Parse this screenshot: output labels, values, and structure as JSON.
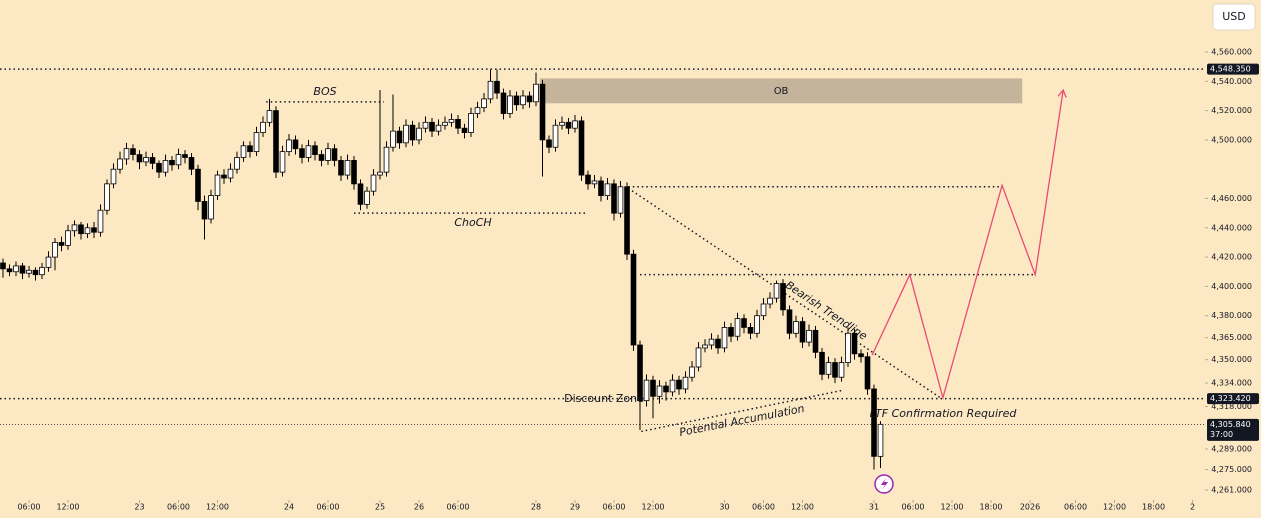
{
  "chart_data": {
    "type": "candlestick",
    "currency": "USD",
    "xlim": [
      -0.46,
      184.92
    ],
    "ylim": [
      4254.2,
      4595.5
    ],
    "xticks": [
      {
        "value": 4,
        "label": "06:00"
      },
      {
        "value": 10,
        "label": "12:00"
      },
      {
        "value": 21,
        "label": "23"
      },
      {
        "value": 27,
        "label": "06:00"
      },
      {
        "value": 33,
        "label": "12:00"
      },
      {
        "value": 44,
        "label": "24"
      },
      {
        "value": 50,
        "label": "06:00"
      },
      {
        "value": 58,
        "label": "25"
      },
      {
        "value": 64,
        "label": "26"
      },
      {
        "value": 70,
        "label": "06:00"
      },
      {
        "value": 82,
        "label": "28"
      },
      {
        "value": 88,
        "label": "29"
      },
      {
        "value": 94,
        "label": "06:00"
      },
      {
        "value": 100,
        "label": "12:00"
      },
      {
        "value": 111,
        "label": "30"
      },
      {
        "value": 117,
        "label": "06:00"
      },
      {
        "value": 123,
        "label": "12:00"
      },
      {
        "value": 134,
        "label": "31"
      },
      {
        "value": 140,
        "label": "06:00"
      },
      {
        "value": 146,
        "label": "12:00"
      },
      {
        "value": 152,
        "label": "18:00"
      },
      {
        "value": 158,
        "label": "2026"
      },
      {
        "value": 165,
        "label": "06:00"
      },
      {
        "value": 171,
        "label": "12:00"
      },
      {
        "value": 177,
        "label": "18:00"
      },
      {
        "value": 183,
        "label": "2"
      }
    ],
    "yticks": [
      {
        "value": 4560,
        "label": "4,560.000"
      },
      {
        "value": 4540,
        "label": "4,540.000"
      },
      {
        "value": 4520,
        "label": "4,520.000"
      },
      {
        "value": 4500,
        "label": "4,500.000"
      },
      {
        "value": 4460,
        "label": "4,460.000"
      },
      {
        "value": 4440,
        "label": "4,440.000"
      },
      {
        "value": 4420,
        "label": "4,420.000"
      },
      {
        "value": 4400,
        "label": "4,400.000"
      },
      {
        "value": 4380,
        "label": "4,380.000"
      },
      {
        "value": 4365,
        "label": "4,365.000"
      },
      {
        "value": 4350,
        "label": "4,350.000"
      },
      {
        "value": 4334,
        "label": "4,334.000"
      },
      {
        "value": 4318,
        "label": "4,318.000"
      },
      {
        "value": 4289,
        "label": "4,289.000"
      },
      {
        "value": 4275,
        "label": "4,275.000"
      },
      {
        "value": 4261,
        "label": "4,261.000"
      }
    ],
    "price_tags": [
      {
        "value": 4548.35,
        "label": "4,548.350"
      },
      {
        "value": 4323.42,
        "label": "4,323.420"
      },
      {
        "value": 4305.84,
        "label": "4,305.840",
        "countdown": "37:00"
      }
    ],
    "ohlc": [
      [
        4416,
        4419,
        4406,
        4412
      ],
      [
        4412,
        4415,
        4407,
        4410
      ],
      [
        4410,
        4417,
        4407,
        4414
      ],
      [
        4414,
        4416,
        4405,
        4409
      ],
      [
        4409,
        4414,
        4406,
        4411
      ],
      [
        4411,
        4413,
        4404,
        4408
      ],
      [
        4408,
        4416,
        4405,
        4413
      ],
      [
        4413,
        4424,
        4410,
        4420
      ],
      [
        4420,
        4433,
        4411,
        4430
      ],
      [
        4430,
        4434,
        4424,
        4428
      ],
      [
        4428,
        4442,
        4425,
        4438
      ],
      [
        4438,
        4445,
        4434,
        4442
      ],
      [
        4442,
        4444,
        4432,
        4436
      ],
      [
        4436,
        4443,
        4433,
        4440
      ],
      [
        4440,
        4444,
        4433,
        4437
      ],
      [
        4437,
        4456,
        4434,
        4452
      ],
      [
        4452,
        4473,
        4449,
        4470
      ],
      [
        4470,
        4484,
        4467,
        4480
      ],
      [
        4480,
        4492,
        4477,
        4487
      ],
      [
        4487,
        4498,
        4483,
        4494
      ],
      [
        4494,
        4497,
        4486,
        4490
      ],
      [
        4490,
        4493,
        4480,
        4485
      ],
      [
        4485,
        4492,
        4482,
        4488
      ],
      [
        4488,
        4491,
        4480,
        4484
      ],
      [
        4484,
        4486,
        4474,
        4478
      ],
      [
        4478,
        4490,
        4475,
        4486
      ],
      [
        4486,
        4489,
        4479,
        4483
      ],
      [
        4483,
        4494,
        4480,
        4490
      ],
      [
        4490,
        4493,
        4484,
        4488
      ],
      [
        4488,
        4491,
        4476,
        4480
      ],
      [
        4480,
        4483,
        4452,
        4458
      ],
      [
        4458,
        4462,
        4432,
        4446
      ],
      [
        4446,
        4466,
        4443,
        4462
      ],
      [
        4462,
        4479,
        4459,
        4476
      ],
      [
        4476,
        4480,
        4470,
        4474
      ],
      [
        4474,
        4484,
        4471,
        4480
      ],
      [
        4480,
        4492,
        4477,
        4488
      ],
      [
        4488,
        4499,
        4485,
        4496
      ],
      [
        4496,
        4499,
        4488,
        4492
      ],
      [
        4492,
        4509,
        4489,
        4505
      ],
      [
        4505,
        4516,
        4502,
        4512
      ],
      [
        4512,
        4528,
        4509,
        4520
      ],
      [
        4520,
        4523,
        4474,
        4478
      ],
      [
        4478,
        4496,
        4475,
        4492
      ],
      [
        4492,
        4504,
        4489,
        4500
      ],
      [
        4500,
        4503,
        4490,
        4494
      ],
      [
        4494,
        4497,
        4484,
        4488
      ],
      [
        4488,
        4500,
        4485,
        4496
      ],
      [
        4496,
        4499,
        4486,
        4490
      ],
      [
        4490,
        4493,
        4482,
        4486
      ],
      [
        4486,
        4498,
        4483,
        4494
      ],
      [
        4494,
        4497,
        4482,
        4486
      ],
      [
        4486,
        4489,
        4472,
        4476
      ],
      [
        4476,
        4490,
        4473,
        4486
      ],
      [
        4486,
        4489,
        4466,
        4470
      ],
      [
        4470,
        4473,
        4452,
        4456
      ],
      [
        4456,
        4468,
        4453,
        4465
      ],
      [
        4465,
        4480,
        4462,
        4476
      ],
      [
        4476,
        4534,
        4473,
        4478
      ],
      [
        4478,
        4499,
        4475,
        4495
      ],
      [
        4495,
        4531,
        4492,
        4506
      ],
      [
        4506,
        4509,
        4494,
        4498
      ],
      [
        4498,
        4514,
        4495,
        4510
      ],
      [
        4510,
        4513,
        4496,
        4500
      ],
      [
        4500,
        4512,
        4497,
        4508
      ],
      [
        4508,
        4516,
        4505,
        4512
      ],
      [
        4512,
        4515,
        4502,
        4506
      ],
      [
        4506,
        4514,
        4503,
        4510
      ],
      [
        4510,
        4516,
        4507,
        4512
      ],
      [
        4512,
        4518,
        4509,
        4514
      ],
      [
        4514,
        4517,
        4504,
        4508
      ],
      [
        4508,
        4511,
        4501,
        4505
      ],
      [
        4505,
        4522,
        4502,
        4518
      ],
      [
        4518,
        4526,
        4515,
        4522
      ],
      [
        4522,
        4532,
        4519,
        4528
      ],
      [
        4528,
        4548,
        4525,
        4540
      ],
      [
        4540,
        4548,
        4528,
        4532
      ],
      [
        4532,
        4535,
        4514,
        4518
      ],
      [
        4518,
        4534,
        4515,
        4530
      ],
      [
        4530,
        4533,
        4520,
        4524
      ],
      [
        4524,
        4534,
        4521,
        4530
      ],
      [
        4530,
        4533,
        4522,
        4526
      ],
      [
        4526,
        4546,
        4523,
        4538
      ],
      [
        4538,
        4541,
        4475,
        4500
      ],
      [
        4500,
        4503,
        4491,
        4495
      ],
      [
        4495,
        4514,
        4492,
        4510
      ],
      [
        4510,
        4516,
        4507,
        4512
      ],
      [
        4512,
        4515,
        4504,
        4508
      ],
      [
        4508,
        4517,
        4505,
        4513
      ],
      [
        4513,
        4516,
        4472,
        4476
      ],
      [
        4476,
        4479,
        4466,
        4470
      ],
      [
        4470,
        4476,
        4467,
        4472
      ],
      [
        4472,
        4475,
        4458,
        4462
      ],
      [
        4462,
        4474,
        4459,
        4470
      ],
      [
        4470,
        4473,
        4445,
        4450
      ],
      [
        4450,
        4472,
        4447,
        4468
      ],
      [
        4468,
        4471,
        4418,
        4422
      ],
      [
        4422,
        4425,
        4356,
        4360
      ],
      [
        4360,
        4363,
        4302,
        4322
      ],
      [
        4322,
        4340,
        4318,
        4336
      ],
      [
        4336,
        4339,
        4310,
        4325
      ],
      [
        4325,
        4336,
        4320,
        4332
      ],
      [
        4332,
        4335,
        4322,
        4328
      ],
      [
        4328,
        4340,
        4325,
        4336
      ],
      [
        4336,
        4339,
        4326,
        4330
      ],
      [
        4330,
        4342,
        4327,
        4338
      ],
      [
        4338,
        4349,
        4335,
        4345
      ],
      [
        4345,
        4362,
        4342,
        4358
      ],
      [
        4358,
        4364,
        4355,
        4360
      ],
      [
        4360,
        4368,
        4357,
        4364
      ],
      [
        4364,
        4367,
        4354,
        4358
      ],
      [
        4358,
        4376,
        4355,
        4372
      ],
      [
        4372,
        4375,
        4362,
        4366
      ],
      [
        4366,
        4382,
        4363,
        4378
      ],
      [
        4378,
        4381,
        4368,
        4372
      ],
      [
        4372,
        4375,
        4364,
        4368
      ],
      [
        4368,
        4384,
        4365,
        4380
      ],
      [
        4380,
        4392,
        4377,
        4388
      ],
      [
        4388,
        4396,
        4385,
        4392
      ],
      [
        4392,
        4404,
        4389,
        4402
      ],
      [
        4402,
        4405,
        4380,
        4384
      ],
      [
        4384,
        4387,
        4364,
        4368
      ],
      [
        4368,
        4380,
        4365,
        4376
      ],
      [
        4376,
        4379,
        4358,
        4362
      ],
      [
        4362,
        4374,
        4359,
        4370
      ],
      [
        4370,
        4373,
        4351,
        4355
      ],
      [
        4355,
        4358,
        4336,
        4340
      ],
      [
        4340,
        4352,
        4337,
        4348
      ],
      [
        4348,
        4351,
        4334,
        4338
      ],
      [
        4338,
        4352,
        4335,
        4348
      ],
      [
        4348,
        4372,
        4345,
        4368
      ],
      [
        4368,
        4371,
        4350,
        4354
      ],
      [
        4354,
        4357,
        4348,
        4352
      ],
      [
        4352,
        4355,
        4326,
        4330
      ],
      [
        4330,
        4333,
        4275,
        4284
      ],
      [
        4284,
        4308,
        4276,
        4305.84
      ]
    ],
    "ob_zone": {
      "label": "OB",
      "x": [
        82.6,
        156.8
      ],
      "y": [
        4525,
        4542
      ],
      "color": "#c4b49c"
    },
    "guides": [
      {
        "label": "BOS",
        "x": [
          40.5,
          58.6
        ],
        "y": [
          4526,
          4526
        ]
      },
      {
        "label": "ChoCH",
        "x": [
          54,
          90
        ],
        "y": [
          4450,
          4450
        ]
      },
      {
        "x": [
          96.2,
          153.7
        ],
        "y": [
          4468,
          4468
        ]
      },
      {
        "x": [
          98,
          158.8
        ],
        "y": [
          4408,
          4408
        ]
      },
      {
        "label": "Bearish Trendline",
        "x": [
          96.2,
          144.2
        ],
        "y": [
          4467,
          4324
        ]
      },
      {
        "label": "Potential Accumulation",
        "x": [
          98.2,
          129.1
        ],
        "y": [
          4301,
          4329
        ]
      }
    ],
    "annotations": {
      "discount_zone": "Discount Zone",
      "ltf": "LTF Confirmation Required"
    },
    "projection": {
      "x": [
        133.7,
        139.5,
        144.6,
        153.7,
        158.8,
        163.1
      ],
      "y": [
        4353,
        4408,
        4324,
        4469,
        4408,
        4534
      ],
      "color": "#ea4a75"
    }
  }
}
